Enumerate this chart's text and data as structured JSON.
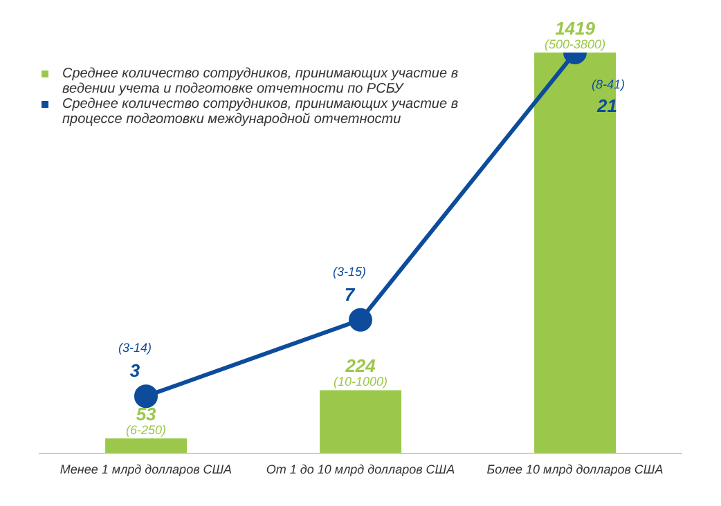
{
  "chart_data": {
    "type": "bar",
    "categories": [
      "Менее 1 млрд долларов США",
      "От 1 до 10 млрд долларов США",
      "Более 10 млрд долларов США"
    ],
    "series": [
      {
        "name": "Среднее количество сотрудников, принимающих участие в ведении учета и подготовке отчетности по РСБУ",
        "color": "#9bc84a",
        "values": [
          53,
          224,
          1419
        ]
      },
      {
        "type": "line",
        "axis": "y2",
        "name": "Среднее количество сотрудников, принимающих участие в процессе подготовки международной отчетности",
        "color": "#0d4c9c",
        "values": [
          3,
          7,
          21
        ]
      }
    ],
    "data_labels": true,
    "tick_labels": "x",
    "legend": "top left",
    "marker": "circle",
    "line_style": "solid",
    "annotations": [
      {
        "text": "(6-250)",
        "x": "Менее 1 млрд долларов США",
        "y": 53
      },
      {
        "text": "(10-1000)",
        "x": "От 1 до 10 млрд долларов США",
        "y": 224
      },
      {
        "text": "(500-3800)",
        "x": "Более 10 млрд долларов США",
        "y": 1419
      },
      "(3-14)",
      "(3-15)",
      "(8-41)"
    ]
  }
}
